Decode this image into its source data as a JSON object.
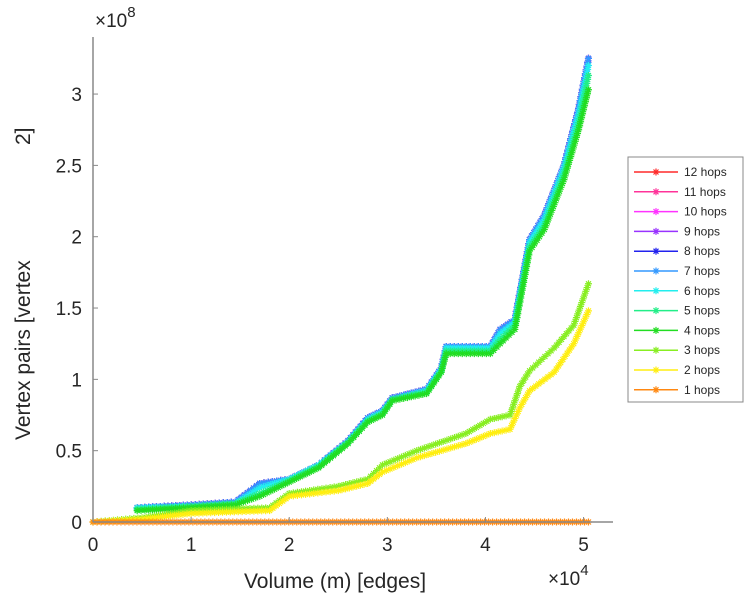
{
  "chart_data": {
    "type": "line",
    "title": "",
    "xlabel": "Volume (m) [edges]",
    "ylabel": "Vertex pairs [vertex",
    "ylabel_superscript": "2]",
    "x_multiplier": "×10",
    "x_multiplier_exp": "4",
    "y_multiplier": "×10",
    "y_multiplier_exp": "8",
    "xlim": [
      0,
      5.3
    ],
    "ylim": [
      0,
      3.4
    ],
    "xticks": [
      0,
      1,
      2,
      3,
      4,
      5
    ],
    "xtick_labels": [
      "0",
      "1",
      "2",
      "3",
      "4",
      "5"
    ],
    "yticks": [
      0,
      0.5,
      1,
      1.5,
      2,
      2.5,
      3
    ],
    "ytick_labels": [
      "0",
      "0.5",
      "1",
      "1.5",
      "2",
      "2.5",
      "3"
    ],
    "grid": false,
    "legend_placement": "outside-right",
    "marker": "asterisk",
    "series": [
      {
        "name": "12 hops",
        "color": "#ff2a2a",
        "x": [
          0.45,
          1.0,
          1.45,
          1.7,
          2.0,
          2.3,
          2.6,
          2.8,
          2.95,
          3.05,
          3.4,
          3.55,
          3.6,
          4.05,
          4.15,
          4.3,
          4.45,
          4.6,
          4.8,
          4.95,
          5.05
        ],
        "y": [
          0.1,
          0.12,
          0.14,
          0.27,
          0.3,
          0.4,
          0.57,
          0.73,
          0.78,
          0.87,
          0.93,
          1.08,
          1.23,
          1.23,
          1.35,
          1.42,
          1.98,
          2.15,
          2.5,
          2.9,
          3.25
        ]
      },
      {
        "name": "11 hops",
        "color": "#ff3399",
        "x": [
          0.45,
          1.0,
          1.45,
          1.7,
          2.0,
          2.3,
          2.6,
          2.8,
          2.95,
          3.05,
          3.4,
          3.55,
          3.6,
          4.05,
          4.15,
          4.3,
          4.45,
          4.6,
          4.8,
          4.95,
          5.05
        ],
        "y": [
          0.1,
          0.12,
          0.14,
          0.27,
          0.3,
          0.4,
          0.57,
          0.73,
          0.78,
          0.87,
          0.93,
          1.08,
          1.23,
          1.23,
          1.35,
          1.42,
          1.98,
          2.15,
          2.5,
          2.9,
          3.25
        ]
      },
      {
        "name": "10 hops",
        "color": "#ff33ff",
        "x": [
          0.45,
          1.0,
          1.45,
          1.7,
          2.0,
          2.3,
          2.6,
          2.8,
          2.95,
          3.05,
          3.4,
          3.55,
          3.6,
          4.05,
          4.15,
          4.3,
          4.45,
          4.6,
          4.8,
          4.95,
          5.05
        ],
        "y": [
          0.1,
          0.12,
          0.14,
          0.27,
          0.3,
          0.4,
          0.57,
          0.73,
          0.78,
          0.87,
          0.93,
          1.08,
          1.23,
          1.23,
          1.35,
          1.42,
          1.98,
          2.15,
          2.5,
          2.9,
          3.25
        ]
      },
      {
        "name": "9 hops",
        "color": "#9933ff",
        "x": [
          0.45,
          1.0,
          1.45,
          1.7,
          2.0,
          2.3,
          2.6,
          2.8,
          2.95,
          3.05,
          3.4,
          3.55,
          3.6,
          4.05,
          4.15,
          4.3,
          4.45,
          4.6,
          4.8,
          4.95,
          5.05
        ],
        "y": [
          0.1,
          0.12,
          0.14,
          0.27,
          0.3,
          0.4,
          0.57,
          0.73,
          0.78,
          0.87,
          0.93,
          1.08,
          1.23,
          1.23,
          1.35,
          1.42,
          1.98,
          2.15,
          2.5,
          2.9,
          3.25
        ]
      },
      {
        "name": "8 hops",
        "color": "#2222ee",
        "x": [
          0.45,
          1.0,
          1.45,
          1.7,
          2.0,
          2.3,
          2.6,
          2.8,
          2.95,
          3.05,
          3.4,
          3.55,
          3.6,
          4.05,
          4.15,
          4.3,
          4.45,
          4.6,
          4.8,
          4.95,
          5.05
        ],
        "y": [
          0.1,
          0.12,
          0.14,
          0.27,
          0.3,
          0.4,
          0.57,
          0.73,
          0.78,
          0.87,
          0.93,
          1.08,
          1.23,
          1.23,
          1.35,
          1.42,
          1.98,
          2.15,
          2.5,
          2.9,
          3.25
        ]
      },
      {
        "name": "7 hops",
        "color": "#3399ff",
        "x": [
          0.45,
          1.0,
          1.45,
          1.7,
          2.0,
          2.3,
          2.6,
          2.8,
          2.95,
          3.05,
          3.4,
          3.55,
          3.6,
          4.05,
          4.15,
          4.3,
          4.45,
          4.6,
          4.8,
          4.95,
          5.05
        ],
        "y": [
          0.1,
          0.12,
          0.14,
          0.27,
          0.3,
          0.4,
          0.57,
          0.73,
          0.78,
          0.87,
          0.93,
          1.08,
          1.23,
          1.23,
          1.35,
          1.42,
          1.98,
          2.15,
          2.5,
          2.9,
          3.25
        ]
      },
      {
        "name": "6 hops",
        "color": "#22eeee",
        "x": [
          0.45,
          1.0,
          1.45,
          1.7,
          2.0,
          2.3,
          2.6,
          2.8,
          2.95,
          3.05,
          3.4,
          3.55,
          3.6,
          4.05,
          4.15,
          4.3,
          4.45,
          4.6,
          4.8,
          4.95,
          5.05
        ],
        "y": [
          0.1,
          0.11,
          0.13,
          0.24,
          0.3,
          0.4,
          0.56,
          0.72,
          0.77,
          0.86,
          0.92,
          1.07,
          1.22,
          1.22,
          1.32,
          1.4,
          1.96,
          2.12,
          2.48,
          2.86,
          3.2
        ]
      },
      {
        "name": "5 hops",
        "color": "#22ee88",
        "x": [
          0.45,
          1.0,
          1.45,
          1.7,
          2.0,
          2.3,
          2.6,
          2.8,
          2.95,
          3.05,
          3.4,
          3.55,
          3.6,
          4.05,
          4.15,
          4.3,
          4.45,
          4.6,
          4.8,
          4.95,
          5.05
        ],
        "y": [
          0.09,
          0.11,
          0.13,
          0.2,
          0.29,
          0.39,
          0.56,
          0.71,
          0.76,
          0.86,
          0.91,
          1.06,
          1.2,
          1.2,
          1.28,
          1.38,
          1.93,
          2.08,
          2.44,
          2.8,
          3.13
        ]
      },
      {
        "name": "4 hops",
        "color": "#22dd22",
        "x": [
          0.45,
          1.0,
          1.45,
          1.7,
          2.0,
          2.3,
          2.6,
          2.8,
          2.95,
          3.05,
          3.4,
          3.55,
          3.6,
          4.05,
          4.15,
          4.3,
          4.45,
          4.6,
          4.8,
          4.95,
          5.05
        ],
        "y": [
          0.08,
          0.1,
          0.12,
          0.18,
          0.28,
          0.38,
          0.55,
          0.7,
          0.75,
          0.85,
          0.9,
          1.05,
          1.18,
          1.18,
          1.25,
          1.35,
          1.9,
          2.05,
          2.4,
          2.75,
          3.03
        ]
      },
      {
        "name": "3 hops",
        "color": "#88ee22",
        "x": [
          0,
          0.5,
          1.0,
          1.8,
          2.0,
          2.5,
          2.8,
          2.95,
          3.3,
          3.8,
          4.05,
          4.25,
          4.35,
          4.45,
          4.7,
          4.9,
          5.05
        ],
        "y": [
          0,
          0.03,
          0.08,
          0.1,
          0.2,
          0.25,
          0.3,
          0.4,
          0.5,
          0.62,
          0.72,
          0.75,
          0.95,
          1.06,
          1.22,
          1.38,
          1.67
        ]
      },
      {
        "name": "2 hops",
        "color": "#ffee11",
        "x": [
          0,
          0.5,
          1.0,
          1.8,
          2.0,
          2.5,
          2.8,
          2.95,
          3.3,
          3.8,
          4.05,
          4.25,
          4.35,
          4.45,
          4.7,
          4.9,
          5.05
        ],
        "y": [
          0,
          0.02,
          0.06,
          0.08,
          0.18,
          0.22,
          0.27,
          0.35,
          0.45,
          0.55,
          0.62,
          0.65,
          0.8,
          0.92,
          1.05,
          1.25,
          1.48
        ]
      },
      {
        "name": "1 hops",
        "color": "#ff8811",
        "x": [
          0,
          5.05
        ],
        "y": [
          0,
          0
        ]
      }
    ]
  }
}
